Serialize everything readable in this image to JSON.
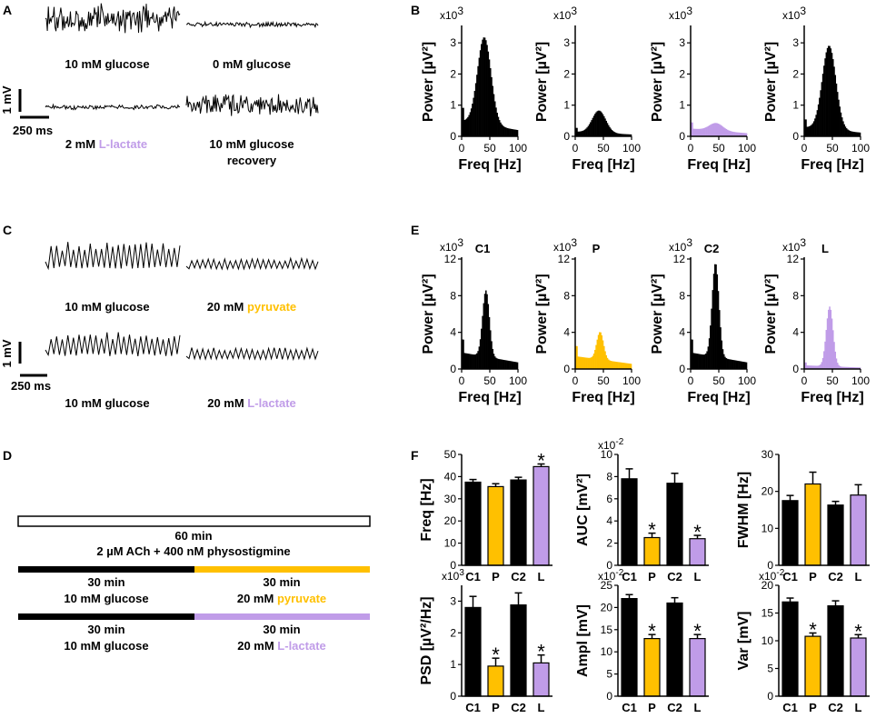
{
  "colors": {
    "black": "#000000",
    "pyruvate": "#FFC000",
    "lactate": "#C09CE8"
  },
  "panel_letters": {
    "A": "A",
    "B": "B",
    "C": "C",
    "D": "D",
    "E": "E",
    "F": "F"
  },
  "panelA": {
    "labels": [
      "10 mM glucose",
      "0 mM glucose",
      "2 mM ",
      "10 mM glucose"
    ],
    "lactate_word": "L-lactate",
    "recovery": "recovery",
    "scale_v": "1 mV",
    "scale_t": "250 ms"
  },
  "panelC": {
    "labels": [
      "10 mM glucose",
      "20 mM ",
      "10 mM glucose",
      "20 mM "
    ],
    "pyruvate_word": "pyruvate",
    "lactate_word": "L-lactate",
    "scale_v": "1 mV",
    "scale_t": "250 ms"
  },
  "panelD": {
    "bar1_time": "60 min",
    "bar1_desc": "2 µM ACh + 400 nM physostigmine",
    "row2": {
      "left_time": "30 min",
      "left_desc": "10 mM glucose",
      "right_time": "30 min",
      "right_desc": "20 mM ",
      "right_word": "pyruvate"
    },
    "row3": {
      "left_time": "30 min",
      "left_desc": "10 mM glucose",
      "right_time": "30 min",
      "right_desc": "20 mM ",
      "right_word": "L-lactate"
    }
  },
  "chart_data": [
    {
      "panel": "B",
      "type": "bar",
      "name": "10 mM glucose",
      "color": "black",
      "xlabel": "Freq [Hz]",
      "ylabel": "Power [µV²]",
      "scale": "x10",
      "scale_exp": "3",
      "xlim": [
        0,
        100
      ],
      "ylim": [
        0,
        3.5
      ],
      "xticks": [
        0,
        50,
        100
      ],
      "yticks": [
        0,
        1,
        2,
        3
      ],
      "peak_freq": 40,
      "peak_power": 3.15,
      "baseline_power": 0.5
    },
    {
      "panel": "B",
      "type": "bar",
      "name": "0 mM glucose",
      "color": "black",
      "xlabel": "Freq [Hz]",
      "ylabel": "Power [µV²]",
      "scale": "x10",
      "scale_exp": "3",
      "xlim": [
        0,
        100
      ],
      "ylim": [
        0,
        3.5
      ],
      "xticks": [
        0,
        50,
        100
      ],
      "yticks": [
        0,
        1,
        2,
        3
      ],
      "peak_freq": 42,
      "peak_power": 0.82,
      "baseline_power": 0.15
    },
    {
      "panel": "B",
      "type": "bar",
      "name": "2 mM L-lactate",
      "color": "lactate",
      "xlabel": "Freq [Hz]",
      "ylabel": "Power [µV²]",
      "scale": "x10",
      "scale_exp": "3",
      "xlim": [
        0,
        100
      ],
      "ylim": [
        0,
        3.5
      ],
      "xticks": [
        0,
        50,
        100
      ],
      "yticks": [
        0,
        1,
        2,
        3
      ],
      "peak_freq": 45,
      "peak_power": 0.42,
      "baseline_power": 0.25
    },
    {
      "panel": "B",
      "type": "bar",
      "name": "10 mM glucose recovery",
      "color": "black",
      "xlabel": "Freq [Hz]",
      "ylabel": "Power [µV²]",
      "scale": "x10",
      "scale_exp": "3",
      "xlim": [
        0,
        100
      ],
      "ylim": [
        0,
        3.5
      ],
      "xticks": [
        0,
        50,
        100
      ],
      "yticks": [
        0,
        1,
        2,
        3
      ],
      "peak_freq": 44,
      "peak_power": 2.9,
      "baseline_power": 0.3
    },
    {
      "panel": "E",
      "type": "bar",
      "title": "C1",
      "color": "black",
      "xlabel": "Freq [Hz]",
      "ylabel": "Power [µV²]",
      "scale": "x10",
      "scale_exp": "3",
      "xlim": [
        0,
        100
      ],
      "ylim": [
        0,
        12
      ],
      "xticks": [
        0,
        50,
        100
      ],
      "yticks": [
        0,
        4,
        8,
        12
      ],
      "peak_freq": 43,
      "peak_power": 8.5,
      "baseline_power": 1.8
    },
    {
      "panel": "E",
      "type": "bar",
      "title": "P",
      "color": "pyruvate",
      "xlabel": "Freq [Hz]",
      "ylabel": "Power [µV²]",
      "scale": "x10",
      "scale_exp": "3",
      "xlim": [
        0,
        100
      ],
      "ylim": [
        0,
        12
      ],
      "xticks": [
        0,
        50,
        100
      ],
      "yticks": [
        0,
        4,
        8,
        12
      ],
      "peak_freq": 44,
      "peak_power": 4.0,
      "baseline_power": 1.4
    },
    {
      "panel": "E",
      "type": "bar",
      "title": "C2",
      "color": "black",
      "xlabel": "Freq [Hz]",
      "ylabel": "Power [µV²]",
      "scale": "x10",
      "scale_exp": "3",
      "xlim": [
        0,
        100
      ],
      "ylim": [
        0,
        12
      ],
      "xticks": [
        0,
        50,
        100
      ],
      "yticks": [
        0,
        4,
        8,
        12
      ],
      "peak_freq": 44,
      "peak_power": 11.5,
      "baseline_power": 1.8
    },
    {
      "panel": "E",
      "type": "bar",
      "title": "L",
      "color": "lactate",
      "xlabel": "Freq [Hz]",
      "ylabel": "Power [µV²]",
      "scale": "x10",
      "scale_exp": "3",
      "xlim": [
        0,
        100
      ],
      "ylim": [
        0,
        12
      ],
      "xticks": [
        0,
        50,
        100
      ],
      "yticks": [
        0,
        4,
        8,
        12
      ],
      "peak_freq": 45,
      "peak_power": 6.8,
      "baseline_power": 0.4
    },
    {
      "panel": "F",
      "type": "bar",
      "ylabel": "Freq [Hz]",
      "scale": "",
      "categories": [
        "C1",
        "P",
        "C2",
        "L"
      ],
      "colors": [
        "black",
        "pyruvate",
        "black",
        "lactate"
      ],
      "values": [
        37.5,
        35.5,
        38.5,
        44.5
      ],
      "errors": [
        1.2,
        1.3,
        1.2,
        1.2
      ],
      "significant": [
        false,
        false,
        false,
        true
      ],
      "ylim": [
        0,
        50
      ],
      "yticks": [
        0,
        10,
        20,
        30,
        40,
        50
      ]
    },
    {
      "panel": "F",
      "type": "bar",
      "ylabel": "AUC [mV²]",
      "scale": "x10",
      "scale_exp": "-2",
      "categories": [
        "C1",
        "P",
        "C2",
        "L"
      ],
      "colors": [
        "black",
        "pyruvate",
        "black",
        "lactate"
      ],
      "values": [
        7.8,
        2.5,
        7.4,
        2.4
      ],
      "errors": [
        0.9,
        0.4,
        0.9,
        0.3
      ],
      "significant": [
        false,
        true,
        false,
        true
      ],
      "ylim": [
        0,
        10
      ],
      "yticks": [
        0,
        2,
        4,
        6,
        8,
        10
      ]
    },
    {
      "panel": "F",
      "type": "bar",
      "ylabel": "FWHM [Hz]",
      "scale": "",
      "categories": [
        "C1",
        "P",
        "C2",
        "L"
      ],
      "colors": [
        "black",
        "pyruvate",
        "black",
        "lactate"
      ],
      "values": [
        17.5,
        22,
        16.3,
        19
      ],
      "errors": [
        1.4,
        3.2,
        1.0,
        2.8
      ],
      "significant": [
        false,
        false,
        false,
        false
      ],
      "ylim": [
        0,
        30
      ],
      "yticks": [
        0,
        10,
        20,
        30
      ]
    },
    {
      "panel": "F",
      "type": "bar",
      "ylabel": "PSD [µV²/Hz]",
      "scale": "x10",
      "scale_exp": "3",
      "categories": [
        "C1",
        "P",
        "C2",
        "L"
      ],
      "colors": [
        "black",
        "pyruvate",
        "black",
        "lactate"
      ],
      "values": [
        2.8,
        0.95,
        2.88,
        1.05
      ],
      "errors": [
        0.35,
        0.25,
        0.38,
        0.25
      ],
      "significant": [
        false,
        true,
        false,
        true
      ],
      "ylim": [
        0,
        3.5
      ],
      "yticks": [
        0,
        1,
        2,
        3
      ]
    },
    {
      "panel": "F",
      "type": "bar",
      "ylabel": "Ampl [mV]",
      "scale": "x10",
      "scale_exp": "-2",
      "categories": [
        "C1",
        "P",
        "C2",
        "L"
      ],
      "colors": [
        "black",
        "pyruvate",
        "black",
        "lactate"
      ],
      "values": [
        22,
        13,
        21,
        13
      ],
      "errors": [
        0.9,
        0.9,
        1.2,
        0.9
      ],
      "significant": [
        false,
        true,
        false,
        true
      ],
      "ylim": [
        0,
        25
      ],
      "yticks": [
        0,
        5,
        10,
        15,
        20,
        25
      ]
    },
    {
      "panel": "F",
      "type": "bar",
      "ylabel": "Var [mV]",
      "scale": "x10",
      "scale_exp": "-2",
      "categories": [
        "C1",
        "P",
        "C2",
        "L"
      ],
      "colors": [
        "black",
        "pyruvate",
        "black",
        "lactate"
      ],
      "values": [
        17,
        10.8,
        16.3,
        10.5
      ],
      "errors": [
        0.7,
        0.6,
        0.9,
        0.6
      ],
      "significant": [
        false,
        true,
        false,
        true
      ],
      "ylim": [
        0,
        20
      ],
      "yticks": [
        0,
        5,
        10,
        15,
        20
      ]
    }
  ]
}
